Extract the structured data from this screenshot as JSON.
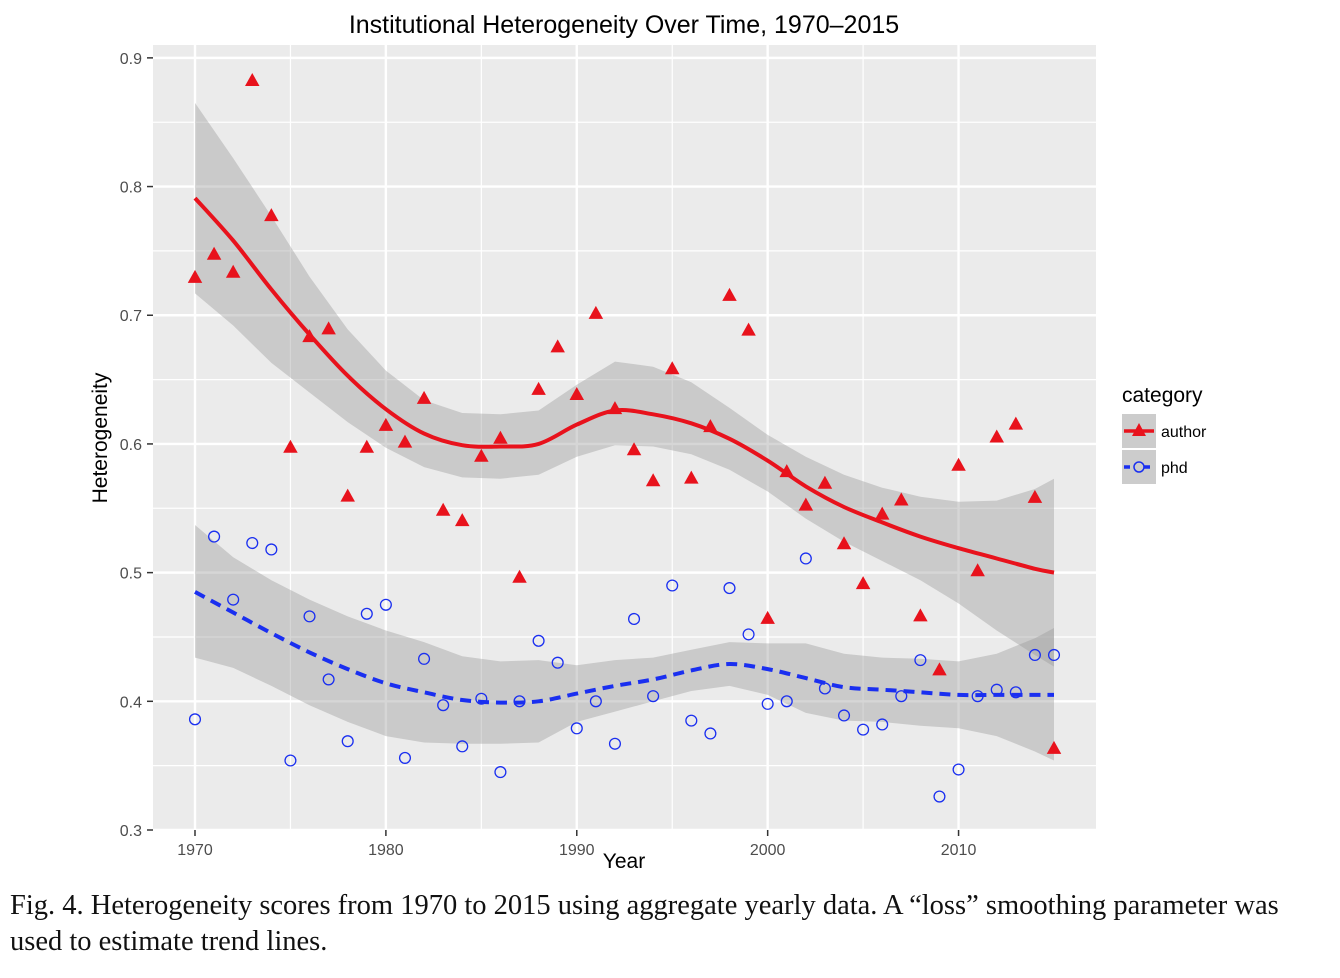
{
  "chart_data": {
    "type": "scatter",
    "title": "Institutional Heterogeneity Over Time, 1970–2015",
    "xlabel": "Year",
    "ylabel": "Heterogeneity",
    "xlim": [
      1967.8,
      2017.2
    ],
    "ylim": [
      0.3,
      0.91
    ],
    "x_ticks": [
      1970,
      1980,
      1990,
      2000,
      2010
    ],
    "y_ticks": [
      0.3,
      0.4,
      0.5,
      0.6,
      0.7,
      0.8,
      0.9
    ],
    "x_tick_labels": [
      "1970",
      "1980",
      "1990",
      "2000",
      "2010"
    ],
    "y_tick_labels": [
      "0.3",
      "0.4",
      "0.5",
      "0.6",
      "0.7",
      "0.8",
      "0.9"
    ],
    "grid": true,
    "legend": {
      "title": "category",
      "position": "right"
    },
    "series": [
      {
        "name": "author",
        "color": "#e8121c",
        "marker": "triangle",
        "line_style": "solid",
        "x": [
          1970,
          1971,
          1972,
          1973,
          1974,
          1975,
          1976,
          1977,
          1978,
          1979,
          1980,
          1981,
          1982,
          1983,
          1984,
          1985,
          1986,
          1987,
          1988,
          1989,
          1990,
          1991,
          1992,
          1993,
          1994,
          1995,
          1996,
          1997,
          1998,
          1999,
          2000,
          2001,
          2002,
          2003,
          2004,
          2005,
          2006,
          2007,
          2008,
          2009,
          2010,
          2011,
          2012,
          2013,
          2014,
          2015
        ],
        "y": [
          0.729,
          0.747,
          0.733,
          0.882,
          0.777,
          0.597,
          0.683,
          0.689,
          0.559,
          0.597,
          0.614,
          0.601,
          0.635,
          0.548,
          0.54,
          0.59,
          0.604,
          0.496,
          0.642,
          0.675,
          0.638,
          0.701,
          0.627,
          0.595,
          0.571,
          0.658,
          0.573,
          0.613,
          0.715,
          0.688,
          0.464,
          0.578,
          0.552,
          0.569,
          0.522,
          0.491,
          0.545,
          0.556,
          0.466,
          0.424,
          0.583,
          0.501,
          0.605,
          0.615,
          0.558,
          0.363
        ],
        "trend_x": [
          1970,
          1972,
          1974,
          1976,
          1978,
          1980,
          1982,
          1984,
          1986,
          1988,
          1990,
          1992,
          1994,
          1996,
          1998,
          2000,
          2002,
          2004,
          2006,
          2008,
          2010,
          2012,
          2014,
          2015
        ],
        "trend_y": [
          0.791,
          0.758,
          0.72,
          0.685,
          0.653,
          0.627,
          0.608,
          0.599,
          0.598,
          0.6,
          0.615,
          0.626,
          0.623,
          0.616,
          0.604,
          0.587,
          0.567,
          0.551,
          0.539,
          0.528,
          0.519,
          0.511,
          0.503,
          0.5
        ],
        "band_lower": [
          0.717,
          0.692,
          0.663,
          0.64,
          0.617,
          0.597,
          0.582,
          0.574,
          0.573,
          0.576,
          0.59,
          0.599,
          0.598,
          0.592,
          0.58,
          0.563,
          0.542,
          0.524,
          0.509,
          0.494,
          0.476,
          0.455,
          0.436,
          0.427
        ],
        "band_upper": [
          0.865,
          0.822,
          0.777,
          0.73,
          0.689,
          0.657,
          0.634,
          0.624,
          0.623,
          0.626,
          0.646,
          0.664,
          0.66,
          0.648,
          0.628,
          0.607,
          0.59,
          0.576,
          0.566,
          0.559,
          0.555,
          0.556,
          0.565,
          0.573
        ]
      },
      {
        "name": "phd",
        "color": "#1a2ff0",
        "marker": "circle-open",
        "line_style": "dashed",
        "x": [
          1970,
          1971,
          1972,
          1973,
          1974,
          1975,
          1976,
          1977,
          1978,
          1979,
          1980,
          1981,
          1982,
          1983,
          1984,
          1985,
          1986,
          1987,
          1988,
          1989,
          1990,
          1991,
          1992,
          1993,
          1994,
          1995,
          1996,
          1997,
          1998,
          1999,
          2000,
          2001,
          2002,
          2003,
          2004,
          2005,
          2006,
          2007,
          2008,
          2009,
          2010,
          2011,
          2012,
          2013,
          2014,
          2015
        ],
        "y": [
          0.386,
          0.528,
          0.479,
          0.523,
          0.518,
          0.354,
          0.466,
          0.417,
          0.369,
          0.468,
          0.475,
          0.356,
          0.433,
          0.397,
          0.365,
          0.402,
          0.345,
          0.4,
          0.447,
          0.43,
          0.379,
          0.4,
          0.367,
          0.464,
          0.404,
          0.49,
          0.385,
          0.375,
          0.488,
          0.452,
          0.398,
          0.4,
          0.511,
          0.41,
          0.389,
          0.378,
          0.382,
          0.404,
          0.432,
          0.326,
          0.347,
          0.404,
          0.409,
          0.407,
          0.436,
          0.436
        ],
        "trend_x": [
          1970,
          1972,
          1974,
          1976,
          1978,
          1980,
          1982,
          1984,
          1986,
          1988,
          1990,
          1992,
          1994,
          1996,
          1998,
          2000,
          2002,
          2004,
          2006,
          2008,
          2010,
          2012,
          2014,
          2015
        ],
        "trend_y": [
          0.485,
          0.469,
          0.453,
          0.438,
          0.425,
          0.414,
          0.407,
          0.401,
          0.399,
          0.4,
          0.406,
          0.412,
          0.417,
          0.424,
          0.429,
          0.425,
          0.418,
          0.411,
          0.409,
          0.407,
          0.405,
          0.405,
          0.405,
          0.405
        ],
        "band_lower": [
          0.434,
          0.426,
          0.412,
          0.397,
          0.384,
          0.373,
          0.368,
          0.367,
          0.367,
          0.368,
          0.384,
          0.392,
          0.4,
          0.408,
          0.412,
          0.405,
          0.391,
          0.385,
          0.384,
          0.381,
          0.379,
          0.373,
          0.361,
          0.354
        ],
        "band_upper": [
          0.537,
          0.512,
          0.494,
          0.479,
          0.466,
          0.455,
          0.446,
          0.435,
          0.431,
          0.432,
          0.428,
          0.432,
          0.434,
          0.44,
          0.446,
          0.445,
          0.445,
          0.437,
          0.434,
          0.433,
          0.431,
          0.437,
          0.449,
          0.457
        ]
      }
    ]
  },
  "caption": "Fig. 4. Heterogeneity scores from 1970 to 2015 using aggregate yearly data. A “loss” smoothing parameter was used to estimate trend lines."
}
